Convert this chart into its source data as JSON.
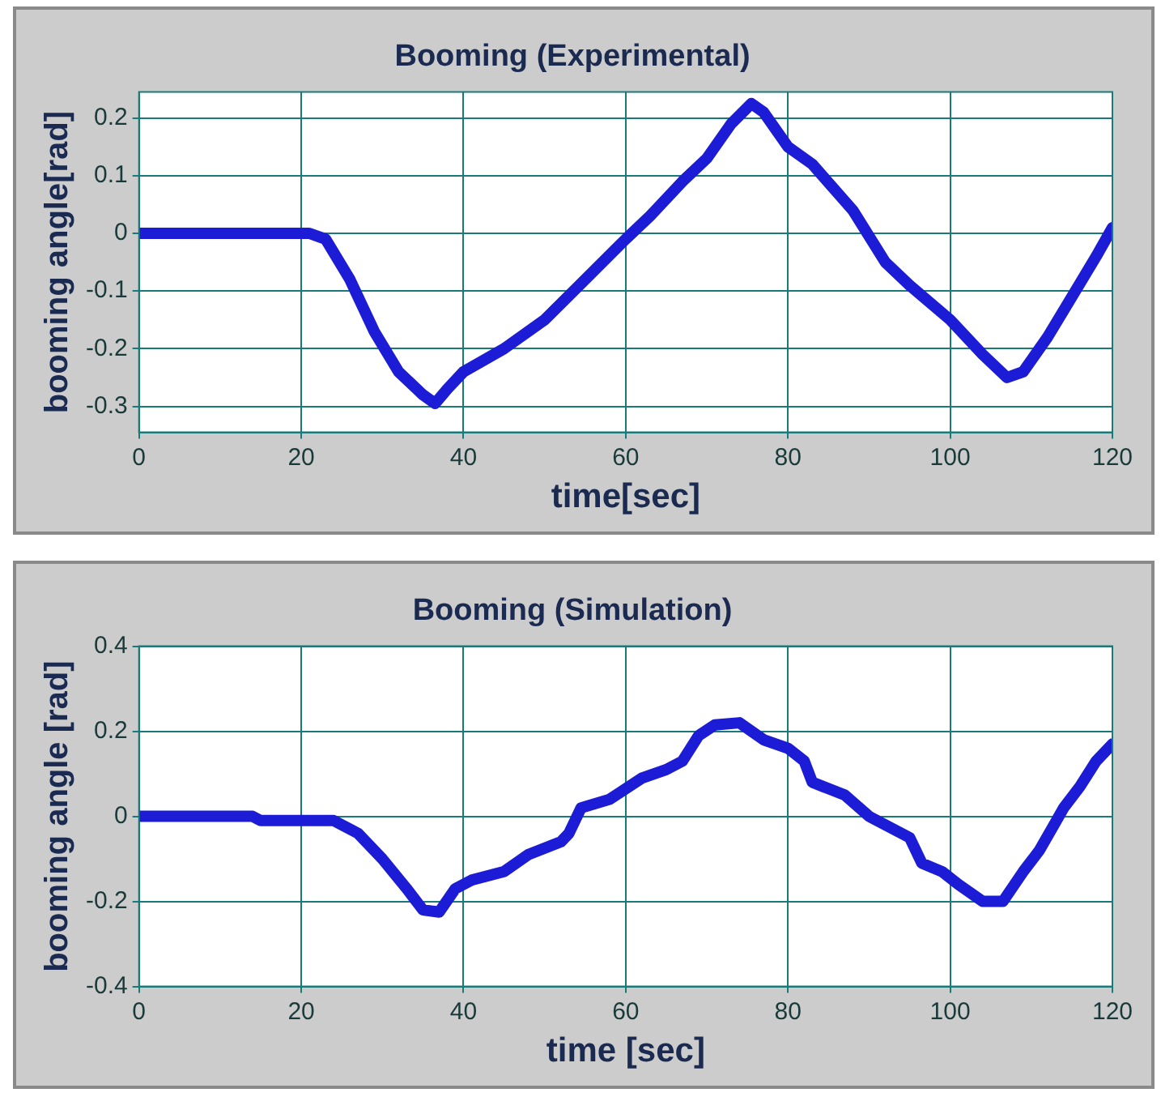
{
  "chart_data": [
    {
      "type": "line",
      "title": "Booming (Experimental)",
      "xlabel": "time[sec]",
      "ylabel": "booming angle[rad]",
      "xlim": [
        0,
        120
      ],
      "ylim": [
        -0.345,
        0.245
      ],
      "xticks": [
        0,
        20,
        40,
        60,
        80,
        100,
        120
      ],
      "yticks": [
        -0.3,
        -0.2,
        -0.1,
        0,
        0.1,
        0.2
      ],
      "grid": true,
      "line_style": "solid",
      "x": [
        0,
        21,
        23,
        26,
        29,
        32,
        35,
        36.5,
        38,
        40,
        45,
        50,
        55,
        60,
        63,
        67,
        70,
        73,
        75.5,
        77,
        80,
        83,
        88,
        92,
        95,
        100,
        104,
        107,
        109,
        112,
        115,
        118,
        120
      ],
      "series": [
        {
          "color": "#1c1cd6",
          "values": [
            0,
            0,
            -0.01,
            -0.08,
            -0.17,
            -0.24,
            -0.28,
            -0.295,
            -0.27,
            -0.24,
            -0.2,
            -0.15,
            -0.08,
            -0.01,
            0.03,
            0.09,
            0.13,
            0.19,
            0.225,
            0.21,
            0.15,
            0.12,
            0.04,
            -0.05,
            -0.09,
            -0.15,
            -0.21,
            -0.25,
            -0.24,
            -0.18,
            -0.11,
            -0.04,
            0.01
          ]
        }
      ]
    },
    {
      "type": "line",
      "title": "Booming (Simulation)",
      "xlabel": "time [sec]",
      "ylabel": "booming angle [rad]",
      "xlim": [
        0,
        120
      ],
      "ylim": [
        -0.4,
        0.4
      ],
      "xticks": [
        0,
        20,
        40,
        60,
        80,
        100,
        120
      ],
      "yticks": [
        -0.4,
        -0.2,
        0,
        0.2,
        0.4
      ],
      "grid": true,
      "line_style": "solid",
      "x": [
        0,
        14,
        15,
        24,
        27,
        30,
        33,
        35,
        37,
        39,
        41,
        45,
        48,
        52,
        53,
        54.5,
        58,
        62,
        65,
        67,
        69,
        71,
        74,
        77,
        80,
        82,
        83,
        87,
        90,
        93,
        95,
        96.5,
        99,
        101,
        104,
        106.5,
        109,
        111,
        114,
        116,
        118,
        120
      ],
      "series": [
        {
          "color": "#1c1cd6",
          "values": [
            0,
            0,
            -0.01,
            -0.01,
            -0.04,
            -0.1,
            -0.17,
            -0.22,
            -0.225,
            -0.17,
            -0.15,
            -0.13,
            -0.09,
            -0.06,
            -0.04,
            0.02,
            0.04,
            0.09,
            0.11,
            0.13,
            0.19,
            0.215,
            0.22,
            0.18,
            0.16,
            0.13,
            0.08,
            0.05,
            0,
            -0.03,
            -0.05,
            -0.11,
            -0.13,
            -0.16,
            -0.2,
            -0.2,
            -0.13,
            -0.08,
            0.02,
            0.07,
            0.13,
            0.17
          ]
        }
      ]
    }
  ]
}
